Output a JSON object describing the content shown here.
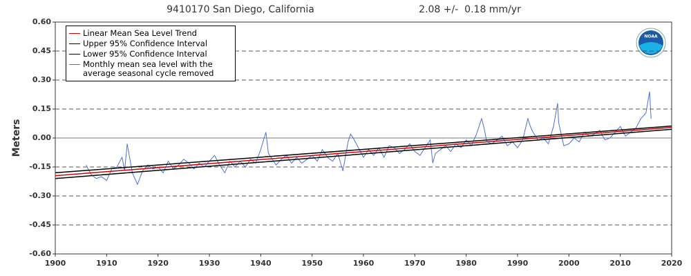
{
  "chart_data": {
    "type": "line",
    "title": "9410170 San Diego, California",
    "subtitle": "2.08 +/-  0.18 mm/yr",
    "y_label": "Meters",
    "logo_text": "NOAA",
    "xlim": [
      1900,
      2020
    ],
    "xticks": [
      1900,
      1910,
      1920,
      1930,
      1940,
      1950,
      1960,
      1970,
      1980,
      1990,
      2000,
      2010,
      2020
    ],
    "ylim": [
      -0.6,
      0.6
    ],
    "yticks": [
      {
        "value": -0.6,
        "label": "-0.60"
      },
      {
        "value": -0.45,
        "label": "-0.45"
      },
      {
        "value": -0.3,
        "label": "-0.30"
      },
      {
        "value": -0.15,
        "label": "-0.15"
      },
      {
        "value": 0,
        "label": "0.00"
      },
      {
        "value": 0.15,
        "label": "0.15"
      },
      {
        "value": 0.3,
        "label": "0.30"
      },
      {
        "value": 0.45,
        "label": "0.45"
      },
      {
        "value": 0.6,
        "label": "0.60"
      }
    ],
    "grid": true,
    "legend_position": "upper-left",
    "series": [
      {
        "name": "Linear Mean Sea Level Trend",
        "color": "#cc0000",
        "x": [
          1900,
          2020
        ],
        "values": [
          -0.195,
          0.055
        ]
      },
      {
        "name": "Upper 95% Confidence Interval",
        "color": "#000000",
        "x": [
          1900,
          2020
        ],
        "values": [
          -0.18,
          0.062
        ]
      },
      {
        "name": "Lower 95% Confidence Interval",
        "color": "#000000",
        "x": [
          1900,
          2020
        ],
        "values": [
          -0.21,
          0.045
        ]
      },
      {
        "name": "Monthly mean sea level with the average seasonal cycle removed",
        "color": "#4a6fd8",
        "x": [
          1906,
          1907,
          1908,
          1909,
          1910,
          1911,
          1912,
          1913,
          1913.5,
          1914,
          1915,
          1916,
          1917,
          1918,
          1919,
          1920,
          1921,
          1922,
          1923,
          1924,
          1925,
          1926,
          1927,
          1928,
          1929,
          1930,
          1931,
          1932,
          1933,
          1934,
          1935,
          1936,
          1937,
          1938,
          1939,
          1940,
          1941,
          1941.5,
          1942,
          1943,
          1944,
          1945,
          1946,
          1947,
          1948,
          1949,
          1950,
          1951,
          1952,
          1953,
          1954,
          1955,
          1956,
          1957,
          1957.5,
          1958,
          1959,
          1960,
          1961,
          1962,
          1963,
          1964,
          1965,
          1966,
          1967,
          1968,
          1969,
          1970,
          1971,
          1972,
          1973,
          1973.5,
          1974,
          1975,
          1976,
          1977,
          1978,
          1979,
          1980,
          1981,
          1982,
          1983,
          1983.5,
          1984,
          1985,
          1986,
          1987,
          1988,
          1989,
          1990,
          1991,
          1992,
          1992.5,
          1993,
          1994,
          1995,
          1996,
          1997,
          1997.8,
          1998,
          1999,
          2000,
          2001,
          2002,
          2003,
          2004,
          2005,
          2006,
          2007,
          2008,
          2009,
          2010,
          2011,
          2012,
          2013,
          2014,
          2015,
          2015.7,
          2016
        ],
        "values": [
          -0.14,
          -0.19,
          -0.21,
          -0.2,
          -0.22,
          -0.16,
          -0.15,
          -0.1,
          -0.17,
          -0.03,
          -0.18,
          -0.24,
          -0.17,
          -0.14,
          -0.16,
          -0.15,
          -0.18,
          -0.12,
          -0.16,
          -0.14,
          -0.11,
          -0.13,
          -0.16,
          -0.13,
          -0.15,
          -0.12,
          -0.09,
          -0.14,
          -0.18,
          -0.12,
          -0.15,
          -0.12,
          -0.15,
          -0.11,
          -0.13,
          -0.06,
          0.03,
          -0.08,
          -0.1,
          -0.14,
          -0.11,
          -0.09,
          -0.13,
          -0.1,
          -0.13,
          -0.11,
          -0.09,
          -0.12,
          -0.06,
          -0.1,
          -0.12,
          -0.08,
          -0.17,
          -0.02,
          0.02,
          0.0,
          -0.05,
          -0.1,
          -0.06,
          -0.09,
          -0.05,
          -0.1,
          -0.04,
          -0.05,
          -0.08,
          -0.06,
          -0.03,
          -0.07,
          -0.09,
          -0.05,
          -0.01,
          -0.13,
          -0.08,
          -0.06,
          -0.04,
          -0.07,
          -0.03,
          -0.05,
          -0.01,
          -0.04,
          0.02,
          0.1,
          0.05,
          -0.02,
          -0.03,
          -0.01,
          0.01,
          -0.04,
          -0.02,
          -0.05,
          -0.01,
          0.1,
          0.06,
          0.03,
          -0.01,
          0.0,
          -0.03,
          0.06,
          0.18,
          0.08,
          -0.04,
          -0.03,
          0.0,
          -0.02,
          0.03,
          0.01,
          0.02,
          0.04,
          -0.01,
          0.0,
          0.03,
          0.06,
          0.01,
          0.03,
          0.05,
          0.1,
          0.13,
          0.24,
          0.1
        ]
      }
    ]
  }
}
